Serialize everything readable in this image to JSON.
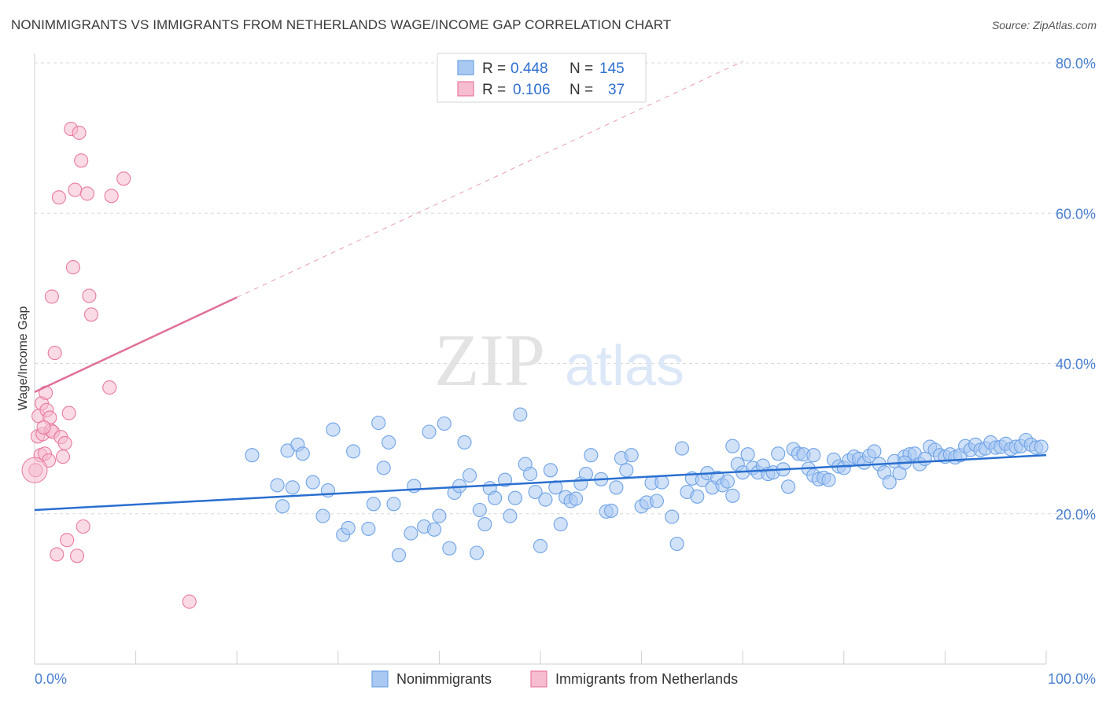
{
  "title": "NONIMMIGRANTS VS IMMIGRANTS FROM NETHERLANDS WAGE/INCOME GAP CORRELATION CHART",
  "source": "Source: ZipAtlas.com",
  "watermark": {
    "zip": "ZIP",
    "atlas": "atlas"
  },
  "colors": {
    "blue": "#6fa3e6",
    "blue_fill": "#a9c8f2",
    "blue_line": "#2a6fd0",
    "pink": "#e97aa0",
    "pink_fill": "#f6bccf",
    "pink_line": "#e07099",
    "tick_text": "#4a7fd0",
    "grid": "#d8d8d8"
  },
  "legend": {
    "rows": [
      {
        "r_label": "R =",
        "r_value": "0.448",
        "n_label": "N =",
        "n_value": "145"
      },
      {
        "r_label": "R =",
        "r_value": "0.106",
        "n_label": "N =",
        "n_value": "37"
      }
    ]
  },
  "bottom_legend": [
    "Nonimmigrants",
    "Immigrants from Netherlands"
  ],
  "chart_data": {
    "type": "scatter",
    "ylabel": "Wage/Income Gap",
    "xlabel": "",
    "xlim": [
      0,
      100
    ],
    "ylim": [
      0,
      80
    ],
    "x_tick_labels": [
      "0.0%",
      "100.0%"
    ],
    "y_tick_labels": [
      "20.0%",
      "40.0%",
      "60.0%",
      "80.0%"
    ],
    "y_ticks": [
      20,
      40,
      60,
      80
    ],
    "series": [
      {
        "name": "Nonimmigrants",
        "trend": {
          "x": [
            0,
            100
          ],
          "y": [
            20.5,
            27.8
          ]
        },
        "points": [
          [
            21.5,
            27.8
          ],
          [
            24,
            23.8
          ],
          [
            24.5,
            21.0
          ],
          [
            25,
            28.4
          ],
          [
            25.5,
            23.5
          ],
          [
            26,
            29.2
          ],
          [
            26.5,
            28.0
          ],
          [
            27.5,
            24.2
          ],
          [
            28.5,
            19.7
          ],
          [
            29,
            23.1
          ],
          [
            29.5,
            31.2
          ],
          [
            30.5,
            17.2
          ],
          [
            31,
            18.1
          ],
          [
            31.5,
            28.3
          ],
          [
            33,
            18.0
          ],
          [
            33.5,
            21.3
          ],
          [
            34,
            32.1
          ],
          [
            34.5,
            26.1
          ],
          [
            35,
            29.5
          ],
          [
            35.5,
            21.3
          ],
          [
            36,
            14.5
          ],
          [
            37.2,
            17.4
          ],
          [
            37.5,
            23.7
          ],
          [
            38.5,
            18.3
          ],
          [
            39,
            30.9
          ],
          [
            39.5,
            17.9
          ],
          [
            40,
            19.7
          ],
          [
            40.5,
            32.0
          ],
          [
            41,
            15.4
          ],
          [
            41.5,
            22.8
          ],
          [
            42,
            23.7
          ],
          [
            42.5,
            29.5
          ],
          [
            43,
            25.1
          ],
          [
            43.7,
            14.8
          ],
          [
            44,
            20.5
          ],
          [
            44.5,
            18.6
          ],
          [
            45,
            23.4
          ],
          [
            45.5,
            22.1
          ],
          [
            46.5,
            24.5
          ],
          [
            47,
            19.7
          ],
          [
            47.5,
            22.1
          ],
          [
            48,
            33.2
          ],
          [
            48.5,
            26.6
          ],
          [
            49,
            25.3
          ],
          [
            49.5,
            22.9
          ],
          [
            50,
            15.7
          ],
          [
            50.5,
            21.9
          ],
          [
            51,
            25.8
          ],
          [
            51.5,
            23.5
          ],
          [
            52,
            18.6
          ],
          [
            52.5,
            22.2
          ],
          [
            53,
            21.7
          ],
          [
            53.5,
            22.0
          ],
          [
            54,
            24.0
          ],
          [
            54.5,
            25.3
          ],
          [
            55,
            27.8
          ],
          [
            56,
            24.6
          ],
          [
            56.5,
            20.3
          ],
          [
            57,
            20.4
          ],
          [
            57.5,
            23.5
          ],
          [
            58,
            27.4
          ],
          [
            58.5,
            25.8
          ],
          [
            59,
            27.8
          ],
          [
            60,
            21.0
          ],
          [
            60.5,
            21.5
          ],
          [
            61,
            24.1
          ],
          [
            61.5,
            21.7
          ],
          [
            62,
            24.2
          ],
          [
            63,
            19.6
          ],
          [
            63.5,
            16.0
          ],
          [
            64,
            28.7
          ],
          [
            64.5,
            22.9
          ],
          [
            65,
            24.7
          ],
          [
            65.5,
            22.3
          ],
          [
            66,
            24.5
          ],
          [
            66.5,
            25.4
          ],
          [
            67,
            23.5
          ],
          [
            67.5,
            24.8
          ],
          [
            68,
            23.8
          ],
          [
            68.5,
            24.3
          ],
          [
            69,
            22.4
          ],
          [
            69.5,
            26.6
          ],
          [
            70,
            25.5
          ],
          [
            70.5,
            27.9
          ],
          [
            71,
            26.1
          ],
          [
            71.5,
            25.5
          ],
          [
            72,
            26.4
          ],
          [
            72.5,
            25.3
          ],
          [
            73,
            25.5
          ],
          [
            73.5,
            28.0
          ],
          [
            74,
            25.9
          ],
          [
            74.5,
            23.6
          ],
          [
            75,
            28.6
          ],
          [
            75.5,
            28.0
          ],
          [
            76,
            27.9
          ],
          [
            76.5,
            26.0
          ],
          [
            77,
            25.1
          ],
          [
            77.5,
            24.6
          ],
          [
            78,
            24.8
          ],
          [
            78.5,
            24.5
          ],
          [
            79,
            27.2
          ],
          [
            79.5,
            26.3
          ],
          [
            80,
            26.1
          ],
          [
            80.5,
            27.1
          ],
          [
            81,
            27.6
          ],
          [
            81.5,
            27.3
          ],
          [
            82,
            26.8
          ],
          [
            82.5,
            27.7
          ],
          [
            83,
            28.3
          ],
          [
            83.5,
            26.6
          ],
          [
            84,
            25.5
          ],
          [
            84.5,
            24.2
          ],
          [
            85,
            27.0
          ],
          [
            85.5,
            25.4
          ],
          [
            86,
            27.6
          ],
          [
            86.5,
            27.9
          ],
          [
            87,
            28.0
          ],
          [
            87.5,
            26.6
          ],
          [
            88,
            27.3
          ],
          [
            88.5,
            28.9
          ],
          [
            89,
            28.5
          ],
          [
            89.5,
            27.8
          ],
          [
            90,
            27.6
          ],
          [
            90.5,
            27.9
          ],
          [
            91,
            27.5
          ],
          [
            91.5,
            27.8
          ],
          [
            92,
            29.0
          ],
          [
            92.5,
            28.5
          ],
          [
            93,
            29.2
          ],
          [
            93.5,
            28.5
          ],
          [
            94,
            28.7
          ],
          [
            94.5,
            29.5
          ],
          [
            95,
            28.8
          ],
          [
            95.5,
            28.9
          ],
          [
            96,
            29.3
          ],
          [
            96.5,
            28.6
          ],
          [
            97,
            28.9
          ],
          [
            97.5,
            29.0
          ],
          [
            98,
            29.8
          ],
          [
            98.5,
            29.2
          ],
          [
            99,
            28.8
          ],
          [
            99.5,
            28.9
          ],
          [
            77,
            27.8
          ],
          [
            69,
            29.0
          ],
          [
            86,
            26.8
          ]
        ]
      },
      {
        "name": "Immigrants from Netherlands",
        "trend": {
          "x": [
            0,
            20
          ],
          "y": [
            36.2,
            48.8
          ],
          "dash_to": {
            "x": 70,
            "y": 80.2
          }
        },
        "points": [
          [
            0.1,
            25.8
          ],
          [
            0.3,
            30.3
          ],
          [
            0.4,
            33.0
          ],
          [
            0.6,
            27.8
          ],
          [
            0.7,
            34.7
          ],
          [
            0.8,
            30.6
          ],
          [
            1.0,
            28.0
          ],
          [
            1.1,
            36.1
          ],
          [
            1.2,
            33.8
          ],
          [
            1.4,
            27.1
          ],
          [
            1.5,
            32.8
          ],
          [
            1.6,
            31.1
          ],
          [
            1.8,
            30.9
          ],
          [
            2.0,
            41.4
          ],
          [
            2.2,
            14.6
          ],
          [
            2.4,
            62.1
          ],
          [
            2.6,
            30.2
          ],
          [
            2.8,
            27.6
          ],
          [
            3.0,
            29.4
          ],
          [
            3.2,
            16.5
          ],
          [
            3.4,
            33.4
          ],
          [
            3.6,
            71.2
          ],
          [
            3.8,
            52.8
          ],
          [
            4.0,
            63.1
          ],
          [
            4.2,
            14.4
          ],
          [
            4.4,
            70.7
          ],
          [
            4.6,
            67.0
          ],
          [
            4.8,
            18.3
          ],
          [
            5.2,
            62.6
          ],
          [
            5.4,
            49.0
          ],
          [
            5.6,
            46.5
          ],
          [
            7.4,
            36.8
          ],
          [
            7.6,
            62.3
          ],
          [
            8.8,
            64.6
          ],
          [
            15.3,
            8.3
          ],
          [
            1.7,
            48.9
          ],
          [
            0.9,
            31.5
          ]
        ]
      }
    ]
  }
}
